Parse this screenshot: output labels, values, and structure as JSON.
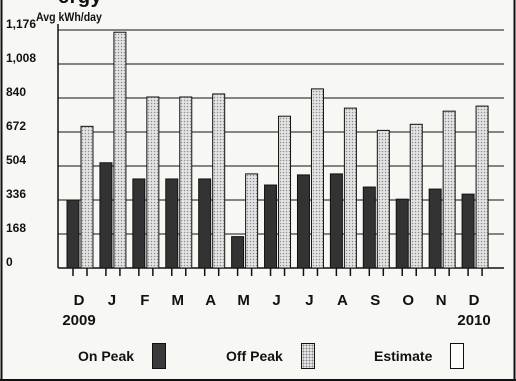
{
  "header": {
    "title_fragment": "ergy",
    "unit": "Avg kWh/day"
  },
  "legend": {
    "on_peak": "On Peak",
    "off_peak": "Off Peak",
    "estimate": "Estimate"
  },
  "colors": {
    "on_peak": "#333333",
    "off_peak": "#e3e3e3",
    "estimate": "#fdfdfb",
    "frame": "#111111"
  },
  "chart_data": {
    "type": "bar",
    "title": "",
    "ylabel": "Avg kWh/day",
    "xlabel": "",
    "ylim": [
      0,
      1176
    ],
    "yticks": [
      "1,176",
      "1,008",
      "840",
      "672",
      "504",
      "336",
      "168",
      "0"
    ],
    "categories": [
      "D",
      "J",
      "F",
      "M",
      "A",
      "M",
      "J",
      "J",
      "A",
      "S",
      "O",
      "N",
      "D"
    ],
    "year_labels": {
      "first": "2009",
      "last": "2010"
    },
    "grid": true,
    "legend_position": "bottom",
    "series": [
      {
        "name": "On Peak",
        "values": [
          336,
          520,
          440,
          440,
          440,
          155,
          410,
          460,
          465,
          400,
          340,
          390,
          365
        ]
      },
      {
        "name": "Off Peak",
        "values": [
          700,
          1165,
          845,
          845,
          860,
          465,
          750,
          885,
          790,
          680,
          710,
          775,
          800
        ]
      }
    ]
  }
}
